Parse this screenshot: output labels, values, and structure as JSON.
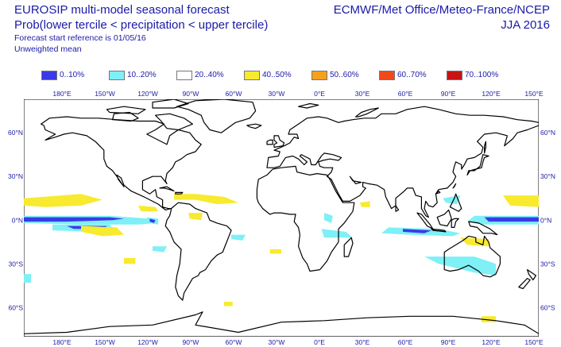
{
  "header": {
    "title_line1": "EUROSIP multi-model seasonal forecast",
    "title_line2": "Prob(lower tercile < precipitation < upper tercile)",
    "forecast_ref": "Forecast start reference is 01/05/16",
    "weighting": "Unweighted mean",
    "models": "ECMWF/Met Office/Meteo-France/NCEP",
    "season": "JJA 2016"
  },
  "legend": [
    {
      "label": "0..10%",
      "color": "#3a3ae8"
    },
    {
      "label": "10..20%",
      "color": "#7ef0f6"
    },
    {
      "label": "20..40%",
      "color": "#ffffff"
    },
    {
      "label": "40..50%",
      "color": "#f8ea2e"
    },
    {
      "label": "50..60%",
      "color": "#f6a11c"
    },
    {
      "label": "60..70%",
      "color": "#ef4a1c"
    },
    {
      "label": "70..100%",
      "color": "#c81414"
    }
  ],
  "map": {
    "projection": "equirectangular, centred on 0°E",
    "lon_ticks_top": [
      "180°E",
      "150°W",
      "120°W",
      "90°W",
      "60°W",
      "30°W",
      "0°E",
      "30°E",
      "60°E",
      "90°E",
      "120°E",
      "150°E"
    ],
    "lon_ticks_bottom": [
      "180°E",
      "150°W",
      "120°W",
      "90°W",
      "60°W",
      "30°W",
      "0°E",
      "30°E",
      "60°E",
      "90°E",
      "120°E",
      "150°E"
    ],
    "lat_ticks_left": [
      "60°N",
      "30°N",
      "0°N",
      "30°S",
      "60°S"
    ],
    "lat_ticks_right": [
      "60°N",
      "30°N",
      "0°N",
      "30°S",
      "60°S"
    ],
    "coastline_color": "#000000"
  }
}
